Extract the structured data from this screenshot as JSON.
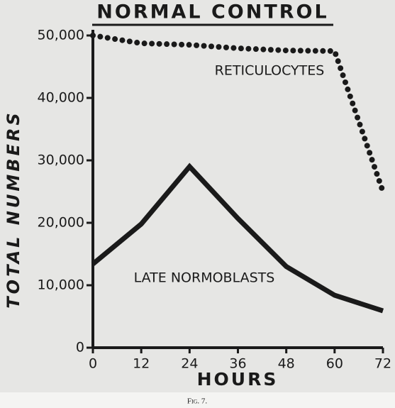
{
  "chart_data": {
    "type": "line",
    "title": "NORMAL CONTROL",
    "xlabel": "HOURS",
    "ylabel": "TOTAL NUMBERS",
    "caption": "Fig. 7.",
    "x": [
      0,
      12,
      24,
      36,
      48,
      60,
      72
    ],
    "series": [
      {
        "name": "RETICULOCYTES",
        "color": "#1a1a1a",
        "line_style": "dotted",
        "values": [
          50000,
          48750,
          48500,
          47950,
          47600,
          47500,
          25000
        ]
      },
      {
        "name": "LATE NORMOBLASTS",
        "color": "#1a1a1a",
        "line_style": "solid",
        "values": [
          13400,
          19800,
          29000,
          20700,
          13000,
          8400,
          5900
        ]
      }
    ],
    "xlim": [
      0,
      72
    ],
    "xticks": [
      0,
      12,
      24,
      36,
      48,
      60,
      72
    ],
    "ylim": [
      0,
      50000
    ],
    "yticks": [
      0,
      {
        "value": 10000,
        "label": "10,000"
      },
      {
        "value": 20000,
        "label": "20,000"
      },
      {
        "value": 30000,
        "label": "30,000"
      },
      {
        "value": 40000,
        "label": "40,000"
      },
      {
        "value": 50000,
        "label": "50,000"
      }
    ],
    "grid": false
  }
}
